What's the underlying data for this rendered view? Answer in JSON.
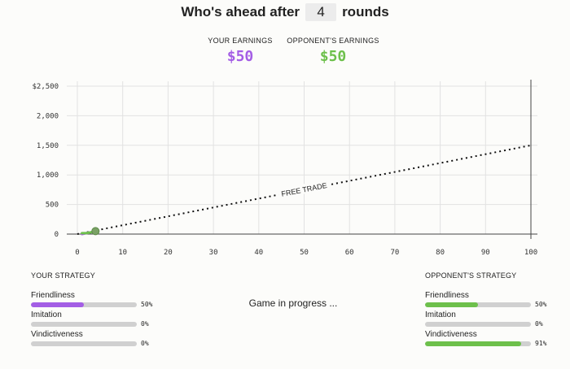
{
  "header": {
    "title_prefix": "Who's ahead after",
    "rounds": "4",
    "title_suffix": "rounds"
  },
  "earnings": {
    "you_label": "YOUR EARNINGS",
    "you_value": "$50",
    "opponent_label": "OPPONENT'S EARNINGS",
    "opponent_value": "$50"
  },
  "colors": {
    "you": "#a45ee5",
    "opponent": "#6dc04b"
  },
  "chart_data": {
    "type": "line",
    "xlim": [
      0,
      100
    ],
    "ylim": [
      0,
      2500
    ],
    "x_ticks": [
      "0",
      "10",
      "20",
      "30",
      "40",
      "50",
      "60",
      "70",
      "80",
      "90",
      "100"
    ],
    "y_ticks": [
      "0",
      "500",
      "1,000",
      "1,500",
      "2,000",
      "$2,500"
    ],
    "reference_line": {
      "label": "FREE TRADE",
      "x": [
        0,
        100
      ],
      "y": [
        0,
        1500
      ]
    },
    "series": [
      {
        "points": [
          [
            1,
            0
          ],
          [
            2,
            15
          ],
          [
            3,
            30
          ],
          [
            4,
            50
          ]
        ]
      },
      {
        "points": [
          [
            1,
            15
          ],
          [
            2,
            15
          ],
          [
            3,
            30
          ],
          [
            4,
            50
          ]
        ]
      }
    ],
    "current_round": 4,
    "current_value": 50
  },
  "your_strategy": {
    "heading": "YOUR STRATEGY",
    "traits": [
      {
        "label": "Friendliness",
        "pct": "50%",
        "value": 0.5
      },
      {
        "label": "Imitation",
        "pct": "0%",
        "value": 0.0
      },
      {
        "label": "Vindictiveness",
        "pct": "0%",
        "value": 0.0
      }
    ]
  },
  "opponent_strategy": {
    "heading": "OPPONENT'S STRATEGY",
    "traits": [
      {
        "label": "Friendliness",
        "pct": "50%",
        "value": 0.5
      },
      {
        "label": "Imitation",
        "pct": "0%",
        "value": 0.0
      },
      {
        "label": "Vindictiveness",
        "pct": "91%",
        "value": 0.91
      }
    ]
  },
  "status_text": "Game in progress ..."
}
